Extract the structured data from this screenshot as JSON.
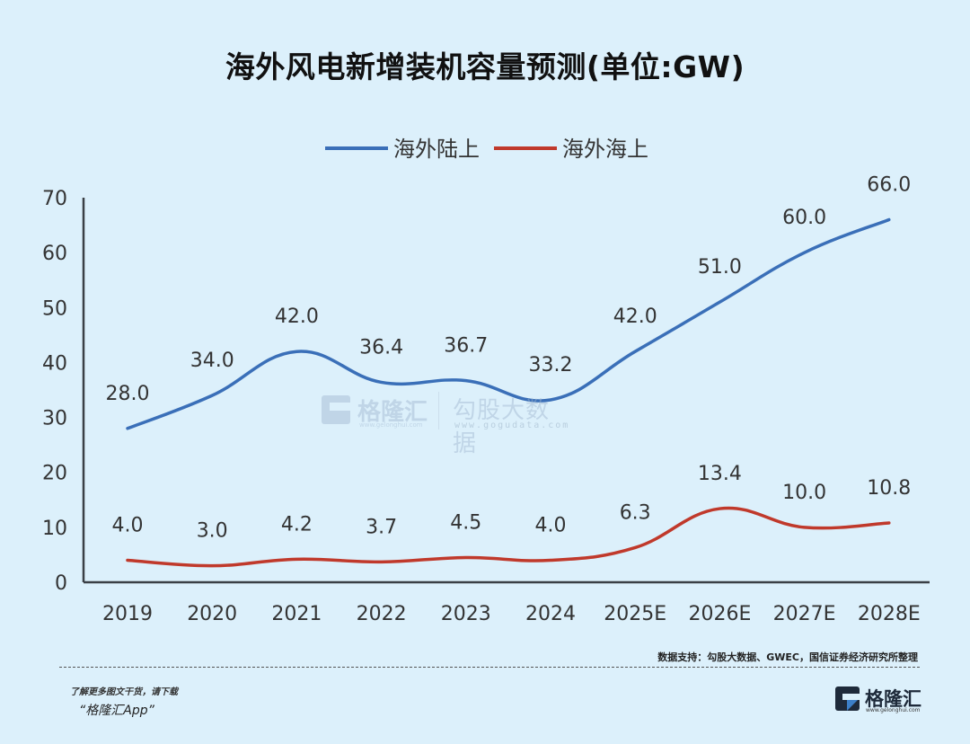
{
  "title": "海外风电新增装机容量预测(单位:GW)",
  "chart_data": {
    "type": "line",
    "title": "海外风电新增装机容量预测(单位:GW)",
    "xlabel": "",
    "ylabel": "",
    "categories": [
      "2019",
      "2020",
      "2021",
      "2022",
      "2023",
      "2024",
      "2025E",
      "2026E",
      "2027E",
      "2028E"
    ],
    "series": [
      {
        "name": "海外陆上",
        "color": "#3a6fb8",
        "values": [
          28.0,
          34.0,
          42.0,
          36.4,
          36.7,
          33.2,
          42.0,
          51.0,
          60.0,
          66.0
        ],
        "labels": [
          "28.0",
          "34.0",
          "42.0",
          "36.4",
          "36.7",
          "33.2",
          "42.0",
          "51.0",
          "60.0",
          "66.0"
        ]
      },
      {
        "name": "海外海上",
        "color": "#c0392b",
        "values": [
          4.0,
          3.0,
          4.2,
          3.7,
          4.5,
          4.0,
          6.3,
          13.4,
          10.0,
          10.8
        ],
        "labels": [
          "4.0",
          "3.0",
          "4.2",
          "3.7",
          "4.5",
          "4.0",
          "6.3",
          "13.4",
          "10.0",
          "10.8"
        ]
      }
    ],
    "ylim": [
      0,
      70
    ],
    "yticks": [
      0,
      10,
      20,
      30,
      40,
      50,
      60,
      70
    ],
    "ytick_labels": [
      "0",
      "10",
      "20",
      "30",
      "40",
      "50",
      "60",
      "70"
    ],
    "grid": false,
    "smooth": true,
    "legend_position": "top-center",
    "data_labels": true
  },
  "watermark": {
    "brand": "格隆汇",
    "brand_url": "www.gelonghui.com",
    "partner": "勾股大数据",
    "partner_url": "www.gogudata.com"
  },
  "source": "数据支持：勾股大数据、GWEC，国信证券经济研究所整理",
  "footer": {
    "promo_line1": "了解更多图文干货，请下载",
    "promo_line2": "“格隆汇App”",
    "logo_name": "格隆汇",
    "logo_url": "www.gelonghui.com"
  }
}
